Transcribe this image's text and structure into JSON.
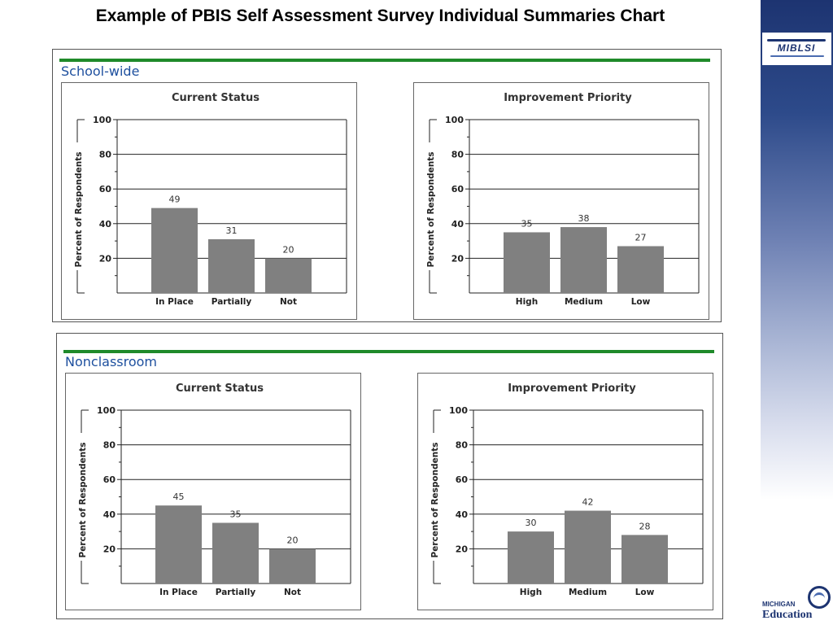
{
  "title": "Example of PBIS Self Assessment Survey Individual Summaries Chart",
  "logos": {
    "top": "MIBLSI",
    "bottom_small": "MICHIGAN",
    "bottom_big": "Education"
  },
  "panels": [
    {
      "label": "School-wide"
    },
    {
      "label": "Nonclassroom"
    }
  ],
  "chart_data": [
    {
      "type": "bar",
      "panel": "School-wide",
      "title": "Current Status",
      "ylabel": "Percent of Respondents",
      "categories": [
        "In Place",
        "Partially",
        "Not"
      ],
      "values": [
        49,
        31,
        20
      ],
      "ylim": [
        0,
        100
      ],
      "yticks": [
        20,
        40,
        60,
        80,
        100
      ],
      "grid": true,
      "color": "#808080"
    },
    {
      "type": "bar",
      "panel": "School-wide",
      "title": "Improvement Priority",
      "ylabel": "Percent of Respondents",
      "categories": [
        "High",
        "Medium",
        "Low"
      ],
      "values": [
        35,
        38,
        27
      ],
      "ylim": [
        0,
        100
      ],
      "yticks": [
        20,
        40,
        60,
        80,
        100
      ],
      "grid": true,
      "color": "#808080"
    },
    {
      "type": "bar",
      "panel": "Nonclassroom",
      "title": "Current Status",
      "ylabel": "Percent of Respondents",
      "categories": [
        "In Place",
        "Partially",
        "Not"
      ],
      "values": [
        45,
        35,
        20
      ],
      "ylim": [
        0,
        100
      ],
      "yticks": [
        20,
        40,
        60,
        80,
        100
      ],
      "grid": true,
      "color": "#808080"
    },
    {
      "type": "bar",
      "panel": "Nonclassroom",
      "title": "Improvement Priority",
      "ylabel": "Percent of Respondents",
      "categories": [
        "High",
        "Medium",
        "Low"
      ],
      "values": [
        30,
        42,
        28
      ],
      "ylim": [
        0,
        100
      ],
      "yticks": [
        20,
        40,
        60,
        80,
        100
      ],
      "grid": true,
      "color": "#808080"
    }
  ]
}
